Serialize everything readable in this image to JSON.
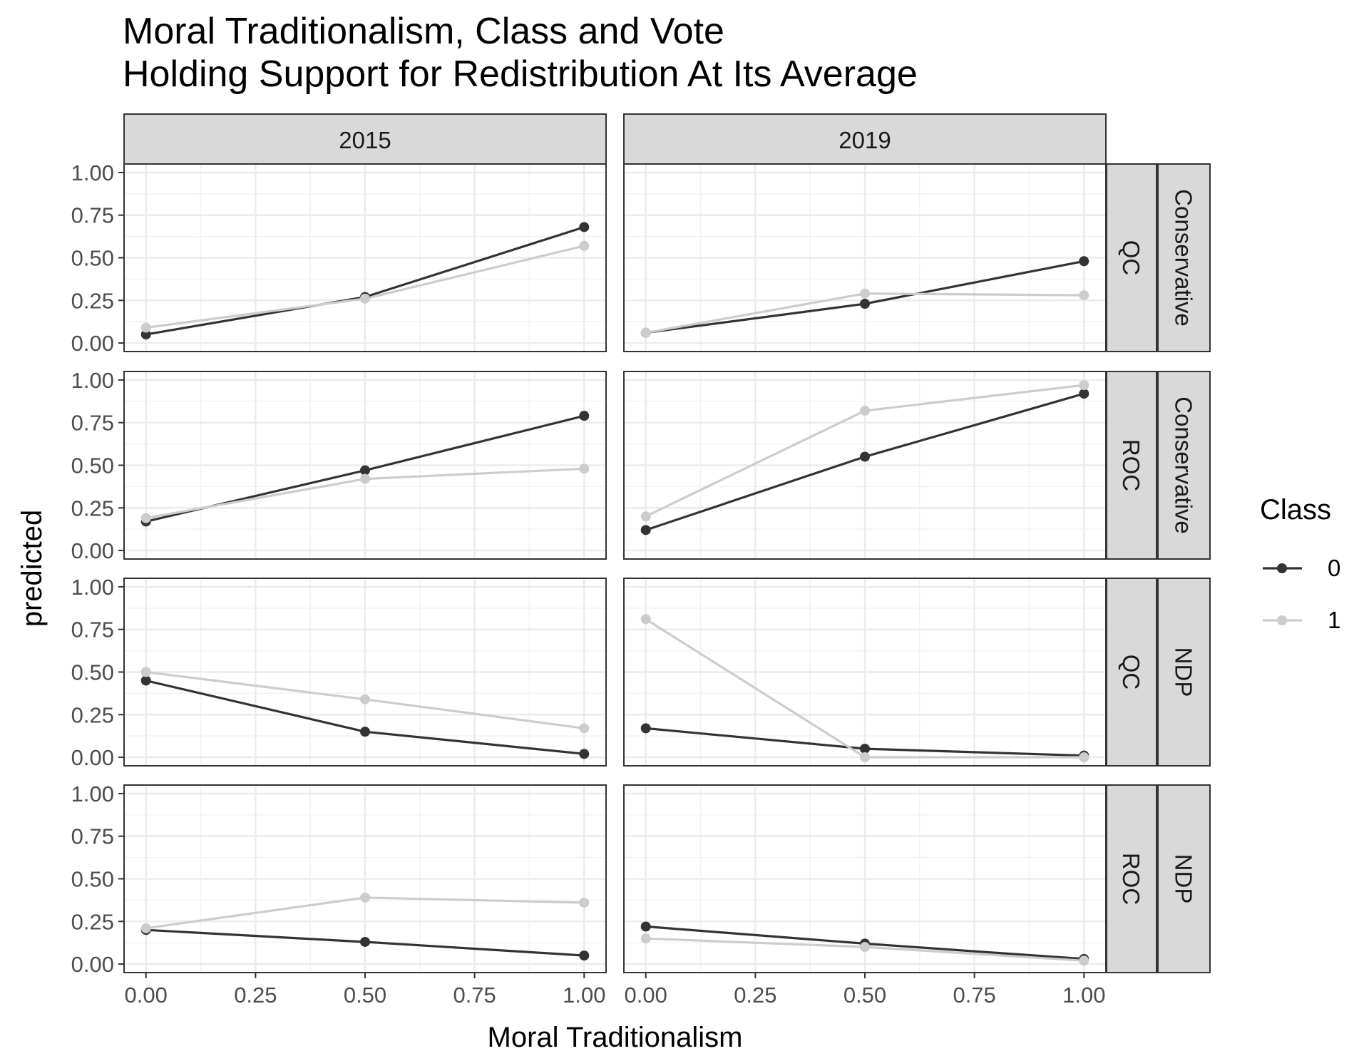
{
  "chart_data": {
    "type": "line",
    "title": [
      "Moral Traditionalism, Class and Vote",
      "Holding Support for Redistribution At Its Average"
    ],
    "xlabel": "Moral Traditionalism",
    "ylabel": "predicted",
    "x_ticks": [
      "0.00",
      "0.25",
      "0.50",
      "0.75",
      "1.00"
    ],
    "y_ticks": [
      "0.00",
      "0.25",
      "0.50",
      "0.75",
      "1.00"
    ],
    "xlim": [
      -0.05,
      1.05
    ],
    "ylim": [
      -0.05,
      1.05
    ],
    "grid": true,
    "legend": {
      "title": "Class",
      "placement": "right",
      "entries": [
        {
          "label": "0",
          "color": "#333333"
        },
        {
          "label": "1",
          "color": "#cccccc"
        }
      ]
    },
    "col_facets": [
      "2015",
      "2019"
    ],
    "row_facets": [
      {
        "region": "QC",
        "party": "Conservative"
      },
      {
        "region": "ROC",
        "party": "Conservative"
      },
      {
        "region": "QC",
        "party": "NDP"
      },
      {
        "region": "ROC",
        "party": "NDP"
      }
    ],
    "x": [
      0,
      0.5,
      1
    ],
    "panels": [
      {
        "year": "2015",
        "region": "QC",
        "party": "Conservative",
        "series": [
          {
            "class": "0",
            "values": [
              0.05,
              0.27,
              0.68
            ]
          },
          {
            "class": "1",
            "values": [
              0.09,
              0.26,
              0.57
            ]
          }
        ]
      },
      {
        "year": "2019",
        "region": "QC",
        "party": "Conservative",
        "series": [
          {
            "class": "0",
            "values": [
              0.06,
              0.23,
              0.48
            ]
          },
          {
            "class": "1",
            "values": [
              0.06,
              0.29,
              0.28
            ]
          }
        ]
      },
      {
        "year": "2015",
        "region": "ROC",
        "party": "Conservative",
        "series": [
          {
            "class": "0",
            "values": [
              0.17,
              0.47,
              0.79
            ]
          },
          {
            "class": "1",
            "values": [
              0.19,
              0.42,
              0.48
            ]
          }
        ]
      },
      {
        "year": "2019",
        "region": "ROC",
        "party": "Conservative",
        "series": [
          {
            "class": "0",
            "values": [
              0.12,
              0.55,
              0.92
            ]
          },
          {
            "class": "1",
            "values": [
              0.2,
              0.82,
              0.97
            ]
          }
        ]
      },
      {
        "year": "2015",
        "region": "QC",
        "party": "NDP",
        "series": [
          {
            "class": "0",
            "values": [
              0.45,
              0.15,
              0.02
            ]
          },
          {
            "class": "1",
            "values": [
              0.5,
              0.34,
              0.17
            ]
          }
        ]
      },
      {
        "year": "2019",
        "region": "QC",
        "party": "NDP",
        "series": [
          {
            "class": "0",
            "values": [
              0.17,
              0.05,
              0.01
            ]
          },
          {
            "class": "1",
            "values": [
              0.81,
              0.0,
              0.0
            ]
          }
        ]
      },
      {
        "year": "2015",
        "region": "ROC",
        "party": "NDP",
        "series": [
          {
            "class": "0",
            "values": [
              0.2,
              0.13,
              0.05
            ]
          },
          {
            "class": "1",
            "values": [
              0.21,
              0.39,
              0.36
            ]
          }
        ]
      },
      {
        "year": "2019",
        "region": "ROC",
        "party": "NDP",
        "series": [
          {
            "class": "0",
            "values": [
              0.22,
              0.12,
              0.03
            ]
          },
          {
            "class": "1",
            "values": [
              0.15,
              0.1,
              0.02
            ]
          }
        ]
      }
    ]
  }
}
